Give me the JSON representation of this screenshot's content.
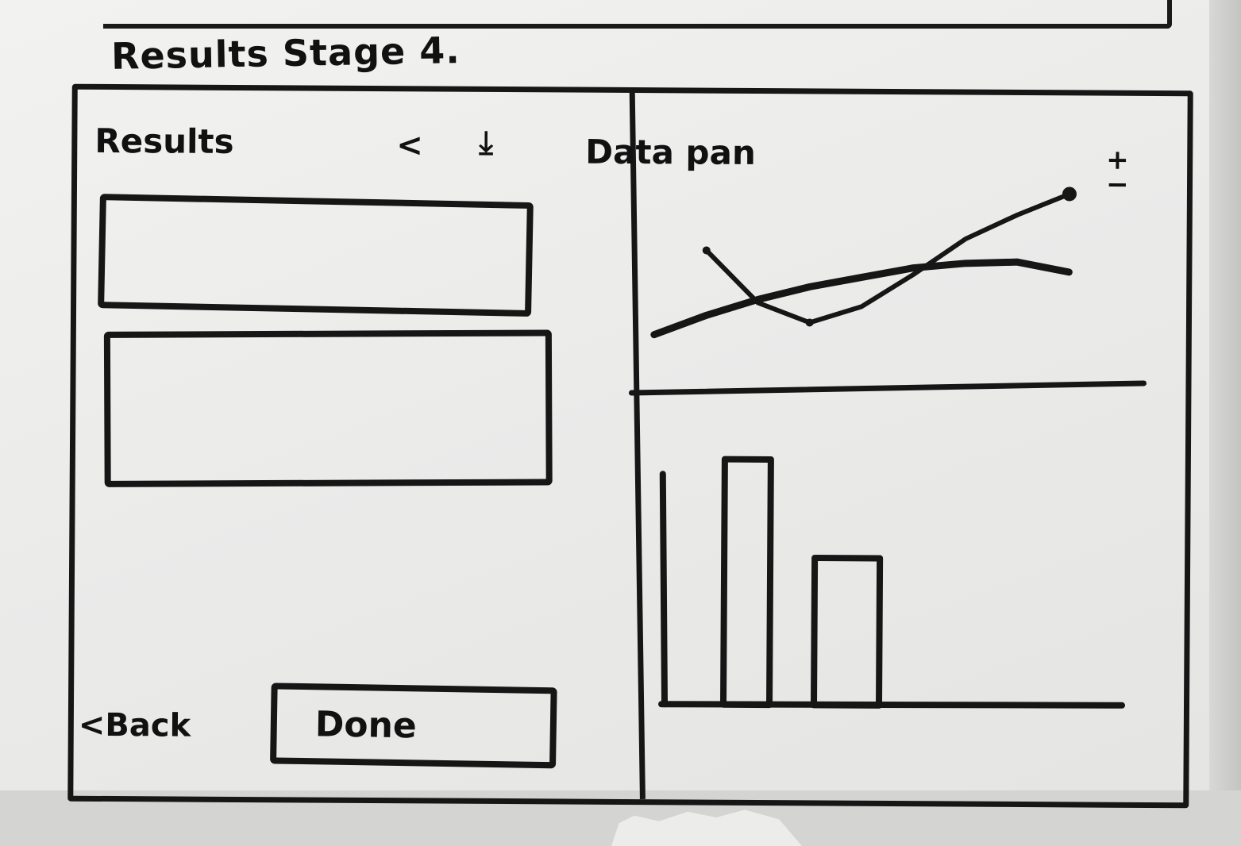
{
  "page": {
    "stage_title": "Results Stage 4."
  },
  "results_panel": {
    "title": "Results",
    "icons": [
      "share-icon",
      "download-icon"
    ],
    "result_boxes": 2,
    "back_label": "<Back",
    "done_label": "Done"
  },
  "data_panel": {
    "title": "Data pan",
    "zoom_icon": "zoom-in-out-icon"
  },
  "chart_data": [
    {
      "type": "line",
      "x": [
        0,
        1,
        2,
        3,
        4,
        5,
        6,
        7,
        8
      ],
      "series": [
        {
          "values": [
            10,
            22,
            32,
            40,
            46,
            52,
            55,
            56,
            50
          ]
        },
        {
          "values": [
            null,
            62,
            30,
            18,
            28,
            48,
            70,
            85,
            98
          ]
        }
      ]
    },
    {
      "type": "bar",
      "categories": [
        "",
        ""
      ],
      "values": [
        100,
        60
      ],
      "ylim": [
        0,
        110
      ]
    }
  ],
  "colors": {
    "ink": "#161616",
    "paper": "#ececea"
  }
}
